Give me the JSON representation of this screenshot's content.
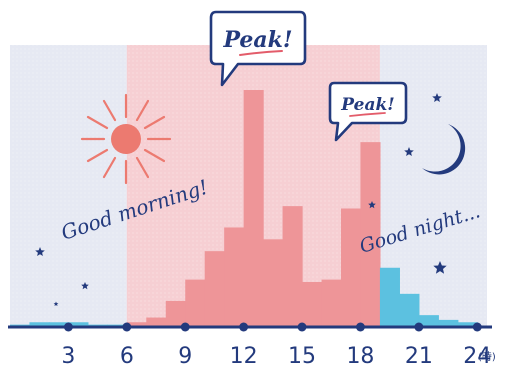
{
  "chart_data": {
    "type": "bar",
    "x_tick_labels": [
      "3",
      "6",
      "9",
      "12",
      "15",
      "18",
      "21",
      "24"
    ],
    "x_unit_label": "(時)",
    "x_range": [
      0,
      24.5
    ],
    "y_range": [
      0,
      100
    ],
    "grid": false,
    "bars": [
      {
        "x0": 0,
        "x1": 1,
        "value": 1,
        "period": "night"
      },
      {
        "x0": 1,
        "x1": 2,
        "value": 2,
        "period": "night"
      },
      {
        "x0": 2,
        "x1": 3,
        "value": 2,
        "period": "night"
      },
      {
        "x0": 3,
        "x1": 4,
        "value": 2,
        "period": "night"
      },
      {
        "x0": 4,
        "x1": 5,
        "value": 1,
        "period": "night"
      },
      {
        "x0": 5,
        "x1": 6,
        "value": 1,
        "period": "night"
      },
      {
        "x0": 6,
        "x1": 7,
        "value": 2,
        "period": "day"
      },
      {
        "x0": 7,
        "x1": 8,
        "value": 4,
        "period": "day"
      },
      {
        "x0": 8,
        "x1": 9,
        "value": 11,
        "period": "day"
      },
      {
        "x0": 9,
        "x1": 10,
        "value": 20,
        "period": "day"
      },
      {
        "x0": 10,
        "x1": 11,
        "value": 32,
        "period": "day"
      },
      {
        "x0": 11,
        "x1": 12,
        "value": 42,
        "period": "day"
      },
      {
        "x0": 12,
        "x1": 13,
        "value": 100,
        "period": "day"
      },
      {
        "x0": 13,
        "x1": 14,
        "value": 37,
        "period": "day"
      },
      {
        "x0": 14,
        "x1": 15,
        "value": 51,
        "period": "day"
      },
      {
        "x0": 15,
        "x1": 16,
        "value": 19,
        "period": "day"
      },
      {
        "x0": 16,
        "x1": 17,
        "value": 20,
        "period": "day"
      },
      {
        "x0": 17,
        "x1": 18,
        "value": 50,
        "period": "day"
      },
      {
        "x0": 18,
        "x1": 19,
        "value": 78,
        "period": "day"
      },
      {
        "x0": 19,
        "x1": 20,
        "value": 25,
        "period": "night"
      },
      {
        "x0": 20,
        "x1": 21,
        "value": 14,
        "period": "night"
      },
      {
        "x0": 21,
        "x1": 22,
        "value": 5,
        "period": "night"
      },
      {
        "x0": 22,
        "x1": 23,
        "value": 3,
        "period": "night"
      },
      {
        "x0": 23,
        "x1": 24,
        "value": 2,
        "period": "night"
      }
    ],
    "shaded_regions": [
      {
        "from": 0,
        "to": 6,
        "period": "night"
      },
      {
        "from": 6,
        "to": 19,
        "period": "day"
      },
      {
        "from": 19,
        "to": 24.5,
        "period": "night"
      }
    ],
    "annotations": {
      "morning": "Good morning!",
      "night": "Good night...",
      "peak_1": "Peak!",
      "peak_2": "Peak!"
    }
  },
  "colors": {
    "night_background": "#e6e9f3",
    "day_background": "#f6cfd3",
    "day_bar": "#ee9598",
    "night_bar": "#5cc1e0",
    "axis": "#233a7d",
    "text": "#233a7d",
    "sun": "#ec7a70",
    "moon": "#233a7d",
    "star": "#233a7d",
    "peak_underline": "#e35c6a"
  },
  "icons": [
    "sun-icon",
    "moon-icon",
    "star-icon",
    "speech-bubble-icon"
  ]
}
